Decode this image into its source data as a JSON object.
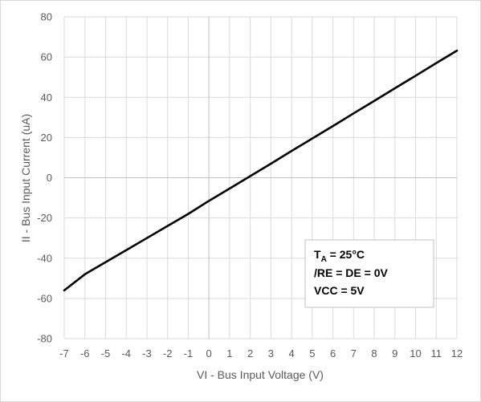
{
  "chart_data": {
    "type": "line",
    "xlabel": "VI - Bus Input Voltage (V)",
    "ylabel": "II - Bus Input Current (uA)",
    "xlim": [
      -7,
      12
    ],
    "ylim": [
      -80,
      80
    ],
    "x_ticks": [
      "-7",
      "-6",
      "-5",
      "-4",
      "-3",
      "-2",
      "-1",
      "0",
      "1",
      "2",
      "3",
      "4",
      "5",
      "6",
      "7",
      "8",
      "9",
      "10",
      "11",
      "12"
    ],
    "y_ticks": [
      "80",
      "60",
      "40",
      "20",
      "0",
      "-20",
      "-40",
      "-60",
      "-80"
    ],
    "grid": true,
    "series": [
      {
        "x": [
          -7,
          -6,
          -5,
          -4,
          -3,
          -2,
          -1,
          0,
          1,
          2,
          3,
          4,
          5,
          6,
          7,
          8,
          9,
          10,
          11,
          12
        ],
        "y": [
          -56,
          -48,
          -42,
          -36,
          -30,
          -24,
          -18,
          -11.5,
          -5.4,
          0.8,
          7,
          13.3,
          19.5,
          25.7,
          32,
          38.2,
          44.5,
          50.7,
          57,
          63.2
        ]
      }
    ],
    "annotation": {
      "line1_main": "T",
      "line1_sub": "A",
      "line1_rest": " = 25°C",
      "line2": "/RE = DE = 0V",
      "line3": "VCC = 5V"
    }
  },
  "colors": {
    "line": "#000000",
    "grid": "#d9d9d9",
    "zero_axis": "#bfbfbf",
    "tick_text": "#595959",
    "box_border": "#bfbfbf"
  }
}
